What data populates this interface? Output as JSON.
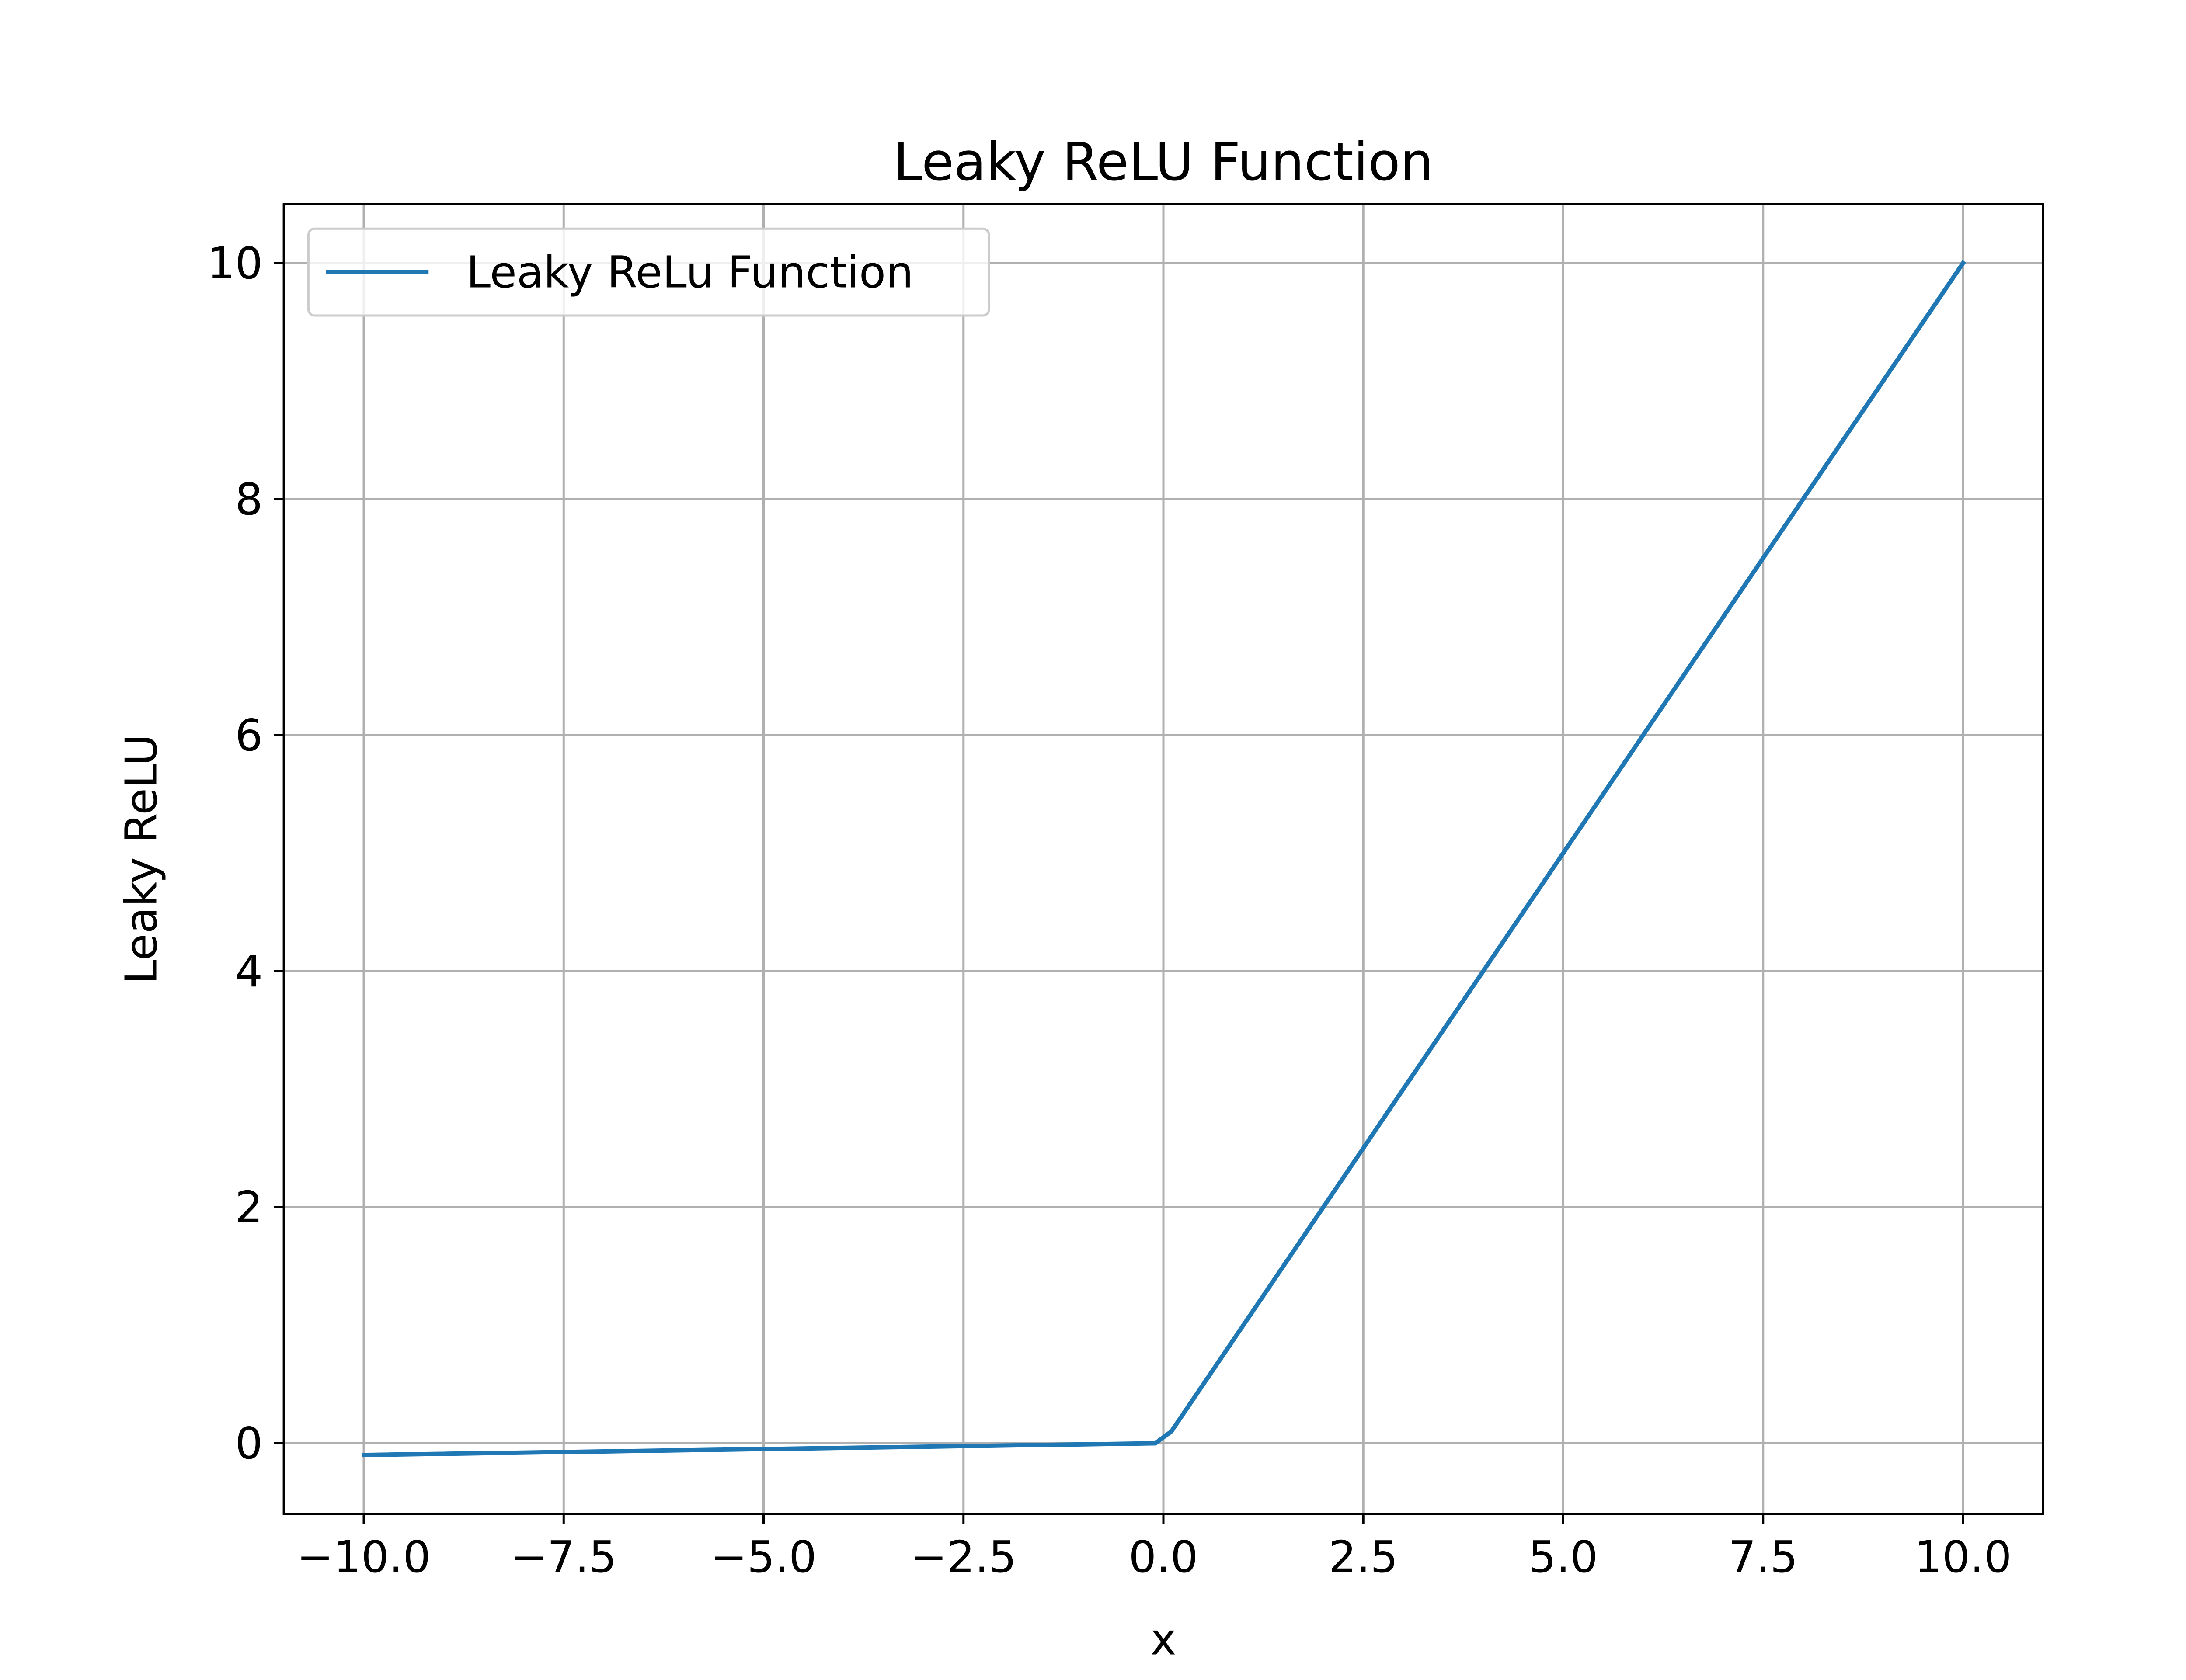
{
  "chart_data": {
    "type": "line",
    "title": "Leaky ReLU Function",
    "xlabel": "x",
    "ylabel": "Leaky ReLU",
    "xlim": [
      -11.0,
      11.0
    ],
    "ylim": [
      -0.6,
      10.5
    ],
    "xticks": [
      -10.0,
      -7.5,
      -5.0,
      -2.5,
      0.0,
      2.5,
      5.0,
      7.5,
      10.0
    ],
    "xtick_labels": [
      "−10.0",
      "−7.5",
      "−5.0",
      "−2.5",
      "0.0",
      "2.5",
      "5.0",
      "7.5",
      "10.0"
    ],
    "yticks": [
      0,
      2,
      4,
      6,
      8,
      10
    ],
    "ytick_labels": [
      "0",
      "2",
      "4",
      "6",
      "8",
      "10"
    ],
    "grid": true,
    "legend_position": "upper-left",
    "series": [
      {
        "name": "Leaky ReLu Function",
        "color": "#1f77b4",
        "x": [
          -10.0,
          -0.1,
          0.1,
          10.0
        ],
        "y": [
          -0.1,
          -0.001,
          0.1,
          10.0
        ]
      }
    ]
  }
}
